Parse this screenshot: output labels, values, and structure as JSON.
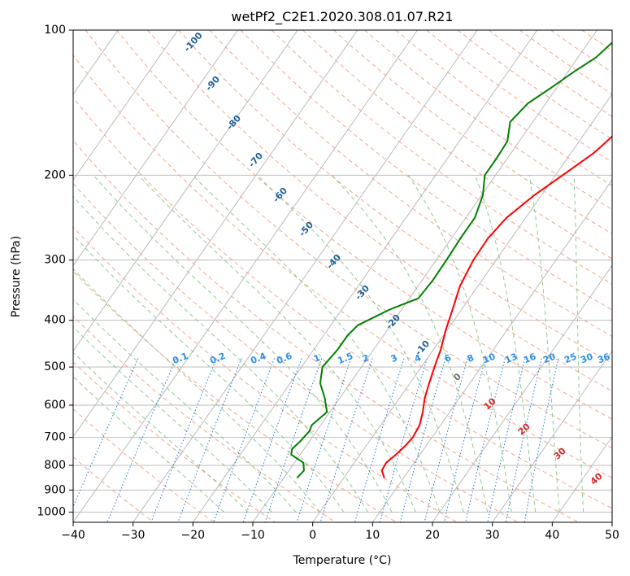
{
  "chart_data": {
    "type": "line",
    "title": "wetPf2_C2E1.2020.308.01.07.R21",
    "xlabel": "Temperature (°C)",
    "ylabel": "Pressure (hPa)",
    "xlim": [
      -40,
      50
    ],
    "ylim": [
      1050,
      100
    ],
    "y_scale": "log",
    "x_ticks": [
      -40,
      -30,
      -20,
      -10,
      0,
      10,
      20,
      30,
      40,
      50
    ],
    "y_ticks": [
      100,
      200,
      300,
      400,
      500,
      600,
      700,
      800,
      900,
      1000
    ],
    "grid": true,
    "skew": "skew-T log-P diagram",
    "series": [
      {
        "kind": "temperature",
        "color": "#ff0000",
        "points": [
          [
            6.8,
            850
          ],
          [
            5.5,
            820
          ],
          [
            5.3,
            790
          ],
          [
            6.0,
            760
          ],
          [
            6.5,
            730
          ],
          [
            6.8,
            700
          ],
          [
            6.5,
            660
          ],
          [
            5.5,
            620
          ],
          [
            4.2,
            580
          ],
          [
            3.2,
            540
          ],
          [
            2.2,
            500
          ],
          [
            1.2,
            460
          ],
          [
            -0.2,
            420
          ],
          [
            -1.5,
            380
          ],
          [
            -3.0,
            340
          ],
          [
            -3.8,
            300
          ],
          [
            -3.9,
            270
          ],
          [
            -3.2,
            245
          ],
          [
            -1.2,
            220
          ],
          [
            1.2,
            200
          ],
          [
            3.8,
            180
          ],
          [
            5.5,
            160
          ],
          [
            6.5,
            145
          ],
          [
            7.5,
            130
          ],
          [
            8.2,
            118
          ],
          [
            8.8,
            108
          ],
          [
            9.5,
            100
          ]
        ]
      },
      {
        "kind": "dewpoint",
        "color": "#008000",
        "points": [
          [
            -7.8,
            850
          ],
          [
            -7.5,
            820
          ],
          [
            -8.5,
            790
          ],
          [
            -11.5,
            760
          ],
          [
            -12.0,
            740
          ],
          [
            -11.5,
            710
          ],
          [
            -11.2,
            680
          ],
          [
            -11.5,
            660
          ],
          [
            -10.5,
            620
          ],
          [
            -12.5,
            580
          ],
          [
            -15.0,
            540
          ],
          [
            -16.5,
            500
          ],
          [
            -16.0,
            460
          ],
          [
            -16.0,
            430
          ],
          [
            -15.5,
            410
          ],
          [
            -12.0,
            380
          ],
          [
            -8.5,
            360
          ],
          [
            -8.2,
            330
          ],
          [
            -8.3,
            300
          ],
          [
            -8.5,
            270
          ],
          [
            -8.5,
            245
          ],
          [
            -9.8,
            220
          ],
          [
            -11.8,
            200
          ],
          [
            -11.8,
            185
          ],
          [
            -12.0,
            170
          ],
          [
            -13.8,
            155
          ],
          [
            -13.0,
            142
          ],
          [
            -11.0,
            132
          ],
          [
            -9.0,
            122
          ],
          [
            -7.0,
            114
          ],
          [
            -6.0,
            106
          ],
          [
            -5.5,
            100
          ]
        ]
      }
    ],
    "dry_adiabat_labels": [
      "-100",
      "-90",
      "-80",
      "-70",
      "-60",
      "-50",
      "-40",
      "-30",
      "-20",
      "-10"
    ],
    "mixing_ratio_labels": [
      "0.1",
      "0.2",
      "0.4",
      "0.6",
      "1",
      "1.5",
      "2",
      "3",
      "4",
      "6",
      "8",
      "10",
      "13",
      "16",
      "20",
      "25",
      "30",
      "36"
    ],
    "moist_adiabat_labels": [
      "0",
      "10",
      "20",
      "30",
      "40"
    ],
    "colors": {
      "isotherm": "#b3b3b3",
      "dry_adiabat": "#f4a58a",
      "moist_adiabat": "#8fc98f",
      "mixing_ratio": "#1f77d4",
      "dry_label": "#1f5f9c",
      "mixing_label": "#2e8ee6",
      "moist_label": "#d62728",
      "moist_zero_label": "#707070"
    }
  }
}
